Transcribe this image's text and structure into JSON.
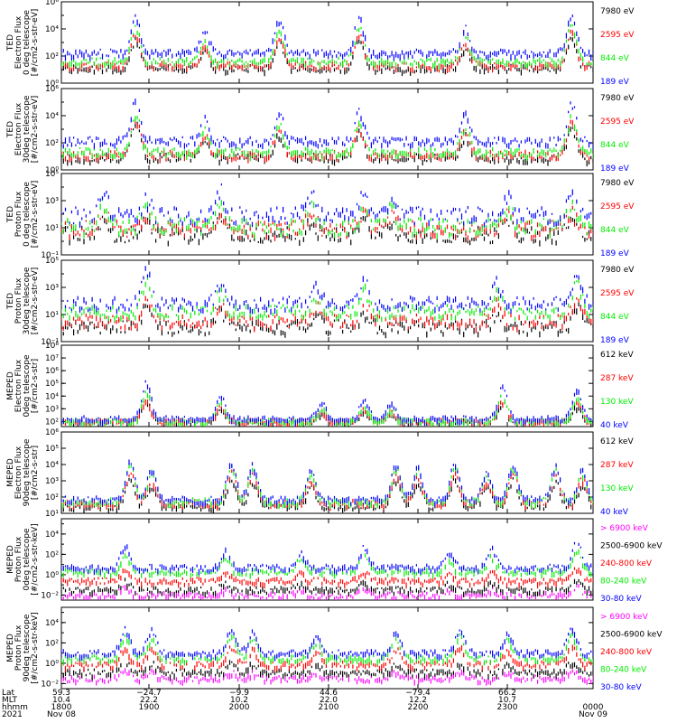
{
  "figure": {
    "time_axis": {
      "row_labels": [
        "Lat",
        "MLT",
        "hhmm",
        "2021"
      ],
      "ticks": [
        {
          "lat": "59.3",
          "mlt": "10.4",
          "hhmm": "1800",
          "date": "Nov 08"
        },
        {
          "lat": "−24.7",
          "mlt": "22.2",
          "hhmm": "1900",
          "date": ""
        },
        {
          "lat": "−9.9",
          "mlt": "10.2",
          "hhmm": "2000",
          "date": ""
        },
        {
          "lat": "44.6",
          "mlt": "22.0",
          "hhmm": "2100",
          "date": ""
        },
        {
          "lat": "−79.4",
          "mlt": "12.2",
          "hhmm": "2200",
          "date": ""
        },
        {
          "lat": "66.2",
          "mlt": "10.7",
          "hhmm": "2300",
          "date": ""
        },
        {
          "lat": "",
          "mlt": "",
          "hhmm": "0000",
          "date": "Nov 09"
        }
      ]
    },
    "colors": {
      "blue": "#0000ff",
      "red": "#ff0000",
      "green": "#00ee00",
      "black": "#000000",
      "magenta": "#ff00ff"
    }
  },
  "chart_data": [
    {
      "type": "scatter",
      "scale": "log",
      "ylabel": [
        "TED",
        "Electron Flux",
        "0 deg telescope",
        "[#/cm2-s-str-eV]"
      ],
      "yticks": [
        {
          "v": 0,
          "l": "10⁰"
        },
        {
          "v": 2,
          "l": "10²"
        },
        {
          "v": 4,
          "l": "10⁴"
        },
        {
          "v": 6,
          "l": "10⁶"
        }
      ],
      "ylim": [
        0,
        6
      ],
      "base": 2.0,
      "bg_noise": 0.25,
      "series": [
        {
          "name": "7980 eV",
          "color": "black",
          "scale": 0.8,
          "off": -0.8
        },
        {
          "name": "2595 eV",
          "color": "red",
          "scale": 0.9,
          "off": -0.6
        },
        {
          "name": "844 eV",
          "color": "green",
          "scale": 0.95,
          "off": -0.3
        },
        {
          "name": "189 eV",
          "color": "blue",
          "scale": 1.0,
          "off": 0.3
        }
      ],
      "peaks": [
        {
          "t": 0.14,
          "h": 2.6
        },
        {
          "t": 0.27,
          "h": 1.5
        },
        {
          "t": 0.41,
          "h": 2.4
        },
        {
          "t": 0.56,
          "h": 2.6
        },
        {
          "t": 0.76,
          "h": 1.8
        },
        {
          "t": 0.96,
          "h": 2.9
        }
      ]
    },
    {
      "type": "scatter",
      "scale": "log",
      "ylabel": [
        "TED",
        "Electron Flux",
        "30deg telescope",
        "[#/cm2-s-str-eV]"
      ],
      "yticks": [
        {
          "v": 0,
          "l": "10⁰"
        },
        {
          "v": 2,
          "l": "10²"
        },
        {
          "v": 4,
          "l": "10⁴"
        },
        {
          "v": 6,
          "l": "10⁶"
        }
      ],
      "ylim": [
        0,
        6
      ],
      "base": 1.5,
      "bg_noise": 0.3,
      "series": [
        {
          "name": "7980 eV",
          "color": "black",
          "scale": 0.8,
          "off": -0.5
        },
        {
          "name": "2595 eV",
          "color": "red",
          "scale": 0.9,
          "off": -0.3
        },
        {
          "name": "844 eV",
          "color": "green",
          "scale": 0.95,
          "off": -0.1
        },
        {
          "name": "189 eV",
          "color": "blue",
          "scale": 1.0,
          "off": 0.7
        }
      ],
      "peaks": [
        {
          "t": 0.14,
          "h": 3.0
        },
        {
          "t": 0.27,
          "h": 1.6
        },
        {
          "t": 0.41,
          "h": 2.1
        },
        {
          "t": 0.56,
          "h": 2.2
        },
        {
          "t": 0.76,
          "h": 1.9
        },
        {
          "t": 0.96,
          "h": 2.7
        }
      ]
    },
    {
      "type": "scatter",
      "scale": "log",
      "ylabel": [
        "TED",
        "Proton Flux",
        "0 deg telescope",
        "[#/cm2-s-str-eV]"
      ],
      "yticks": [
        {
          "v": -1,
          "l": "10⁻¹"
        },
        {
          "v": 1,
          "l": "10¹"
        },
        {
          "v": 3,
          "l": "10³"
        },
        {
          "v": 5,
          "l": "10⁵"
        }
      ],
      "ylim": [
        -1,
        5
      ],
      "base": 1.4,
      "bg_noise": 0.6,
      "series": [
        {
          "name": "7980 eV",
          "color": "black",
          "scale": 0.7,
          "off": -0.8
        },
        {
          "name": "2595 eV",
          "color": "red",
          "scale": 0.8,
          "off": -0.4
        },
        {
          "name": "844 eV",
          "color": "green",
          "scale": 1.0,
          "off": -0.2
        },
        {
          "name": "189 eV",
          "color": "blue",
          "scale": 1.0,
          "off": 0.6
        }
      ],
      "peaks": [
        {
          "t": 0.08,
          "h": 1.6
        },
        {
          "t": 0.16,
          "h": 1.2
        },
        {
          "t": 0.3,
          "h": 1.8
        },
        {
          "t": 0.47,
          "h": 1.4
        },
        {
          "t": 0.57,
          "h": 1.7
        },
        {
          "t": 0.62,
          "h": 1.3
        },
        {
          "t": 0.84,
          "h": 1.4
        },
        {
          "t": 0.96,
          "h": 1.3
        }
      ]
    },
    {
      "type": "scatter",
      "scale": "log",
      "ylabel": [
        "TED",
        "Proton Flux",
        "30deg telescope",
        "[#/cm2-s-str-eV]"
      ],
      "yticks": [
        {
          "v": -1,
          "l": "10⁻¹"
        },
        {
          "v": 1,
          "l": "10¹"
        },
        {
          "v": 3,
          "l": "10³"
        },
        {
          "v": 5,
          "l": "10⁵"
        }
      ],
      "ylim": [
        -1,
        5
      ],
      "base": 1.3,
      "bg_noise": 0.5,
      "series": [
        {
          "name": "7980 eV",
          "color": "black",
          "scale": 0.7,
          "off": -1.1
        },
        {
          "name": "2595 eV",
          "color": "red",
          "scale": 0.8,
          "off": -0.7
        },
        {
          "name": "844 eV",
          "color": "green",
          "scale": 1.0,
          "off": 0.0
        },
        {
          "name": "189 eV",
          "color": "blue",
          "scale": 1.0,
          "off": 0.6
        }
      ],
      "peaks": [
        {
          "t": 0.16,
          "h": 2.4
        },
        {
          "t": 0.3,
          "h": 1.5
        },
        {
          "t": 0.48,
          "h": 1.2
        },
        {
          "t": 0.57,
          "h": 1.6
        },
        {
          "t": 0.82,
          "h": 1.5
        },
        {
          "t": 0.97,
          "h": 2.1
        }
      ]
    },
    {
      "type": "scatter",
      "scale": "log",
      "ylabel": [
        "MEPED",
        "Electron Flux",
        "0deg telescope",
        "[#/cm2-s-str]"
      ],
      "yticks": [
        {
          "v": 2,
          "l": "10²"
        },
        {
          "v": 3,
          "l": "10³"
        },
        {
          "v": 4,
          "l": "10⁴"
        },
        {
          "v": 5,
          "l": "10⁵"
        },
        {
          "v": 6,
          "l": "10⁶"
        },
        {
          "v": 7,
          "l": "10⁷"
        },
        {
          "v": 8,
          "l": "10⁸"
        }
      ],
      "ylim": [
        1.6,
        8
      ],
      "base": 2.1,
      "bg_noise": 0.2,
      "series": [
        {
          "name": "612 keV",
          "color": "black",
          "scale": 0.5,
          "off": 0.0
        },
        {
          "name": "287 keV",
          "color": "red",
          "scale": 0.6,
          "off": 0.0
        },
        {
          "name": "130 keV",
          "color": "green",
          "scale": 0.8,
          "off": 0.0
        },
        {
          "name": "40 keV",
          "color": "blue",
          "scale": 1.0,
          "off": 0.2
        }
      ],
      "peaks": [
        {
          "t": 0.16,
          "h": 2.9
        },
        {
          "t": 0.3,
          "h": 1.8
        },
        {
          "t": 0.49,
          "h": 1.2
        },
        {
          "t": 0.57,
          "h": 1.5
        },
        {
          "t": 0.62,
          "h": 1.1
        },
        {
          "t": 0.83,
          "h": 2.6
        },
        {
          "t": 0.97,
          "h": 2.3
        }
      ]
    },
    {
      "type": "scatter",
      "scale": "log",
      "ylabel": [
        "MEPED",
        "Electron Flux",
        "90deg telescope",
        "[#/cm2-s-str]"
      ],
      "yticks": [
        {
          "v": 1,
          "l": "10¹"
        },
        {
          "v": 2,
          "l": "10²"
        },
        {
          "v": 3,
          "l": "10³"
        },
        {
          "v": 4,
          "l": "10⁴"
        },
        {
          "v": 5,
          "l": "10⁵"
        },
        {
          "v": 6,
          "l": "10⁶"
        }
      ],
      "ylim": [
        1,
        6
      ],
      "base": 1.8,
      "bg_noise": 0.2,
      "series": [
        {
          "name": "612 keV",
          "color": "black",
          "scale": 0.7,
          "off": -0.3
        },
        {
          "name": "287 keV",
          "color": "red",
          "scale": 0.8,
          "off": -0.1
        },
        {
          "name": "130 keV",
          "color": "green",
          "scale": 0.95,
          "off": 0.0
        },
        {
          "name": "40 keV",
          "color": "blue",
          "scale": 1.0,
          "off": 0.1
        }
      ],
      "peaks": [
        {
          "t": 0.13,
          "h": 2.4
        },
        {
          "t": 0.17,
          "h": 1.8
        },
        {
          "t": 0.32,
          "h": 2.3
        },
        {
          "t": 0.36,
          "h": 2.1
        },
        {
          "t": 0.47,
          "h": 1.8
        },
        {
          "t": 0.63,
          "h": 2.2
        },
        {
          "t": 0.67,
          "h": 2.0
        },
        {
          "t": 0.74,
          "h": 2.3
        },
        {
          "t": 0.8,
          "h": 1.6
        },
        {
          "t": 0.85,
          "h": 2.2
        },
        {
          "t": 0.93,
          "h": 2.0
        },
        {
          "t": 0.98,
          "h": 1.8
        }
      ]
    },
    {
      "type": "scatter",
      "scale": "log",
      "ylabel": [
        "MEPED",
        "Proton Flux",
        "0deg telescope",
        "[#/cm2-s-str-keV]"
      ],
      "yticks": [
        {
          "v": -2,
          "l": "10⁻²"
        },
        {
          "v": 0,
          "l": "10⁰"
        },
        {
          "v": 2,
          "l": "10²"
        },
        {
          "v": 4,
          "l": "10⁴"
        }
      ],
      "ylim": [
        -2.5,
        5.5
      ],
      "base": 0.5,
      "bg_noise": 0.3,
      "series": [
        {
          "name": "> 6900 keV",
          "color": "magenta",
          "scale": 0.3,
          "off": -2.4
        },
        {
          "name": "2500-6900 keV",
          "color": "black",
          "scale": 0.4,
          "off": -1.9
        },
        {
          "name": "240-800 keV",
          "color": "red",
          "scale": 0.5,
          "off": -1.0
        },
        {
          "name": "80-240 keV",
          "color": "green",
          "scale": 0.8,
          "off": -0.1
        },
        {
          "name": "30-80 keV",
          "color": "blue",
          "scale": 1.0,
          "off": 0.3
        }
      ],
      "peaks": [
        {
          "t": 0.12,
          "h": 2.2
        },
        {
          "t": 0.31,
          "h": 1.6
        },
        {
          "t": 0.45,
          "h": 1.4
        },
        {
          "t": 0.57,
          "h": 2.0
        },
        {
          "t": 0.73,
          "h": 1.4
        },
        {
          "t": 0.81,
          "h": 1.8
        },
        {
          "t": 0.97,
          "h": 2.6
        }
      ]
    },
    {
      "type": "scatter",
      "scale": "log",
      "ylabel": [
        "MEPED",
        "Proton Flux",
        "90deg telescope",
        "[#/cm2-s-str-keV]"
      ],
      "yticks": [
        {
          "v": -2,
          "l": "10⁻²"
        },
        {
          "v": 0,
          "l": "10⁰"
        },
        {
          "v": 2,
          "l": "10²"
        },
        {
          "v": 4,
          "l": "10⁴"
        }
      ],
      "ylim": [
        -2.5,
        5.5
      ],
      "base": 0.8,
      "bg_noise": 0.3,
      "series": [
        {
          "name": "> 6900 keV",
          "color": "magenta",
          "scale": 0.3,
          "off": -2.2
        },
        {
          "name": "2500-6900 keV",
          "color": "black",
          "scale": 0.4,
          "off": -1.6
        },
        {
          "name": "240-800 keV",
          "color": "red",
          "scale": 0.7,
          "off": -0.8
        },
        {
          "name": "80-240 keV",
          "color": "green",
          "scale": 0.9,
          "off": -0.2
        },
        {
          "name": "30-80 keV",
          "color": "blue",
          "scale": 1.0,
          "off": 0.3
        }
      ],
      "peaks": [
        {
          "t": 0.12,
          "h": 2.4
        },
        {
          "t": 0.17,
          "h": 2.2
        },
        {
          "t": 0.32,
          "h": 2.3
        },
        {
          "t": 0.36,
          "h": 2.0
        },
        {
          "t": 0.48,
          "h": 1.8
        },
        {
          "t": 0.63,
          "h": 2.0
        },
        {
          "t": 0.75,
          "h": 2.4
        },
        {
          "t": 0.84,
          "h": 1.9
        },
        {
          "t": 0.96,
          "h": 2.6
        }
      ]
    }
  ]
}
